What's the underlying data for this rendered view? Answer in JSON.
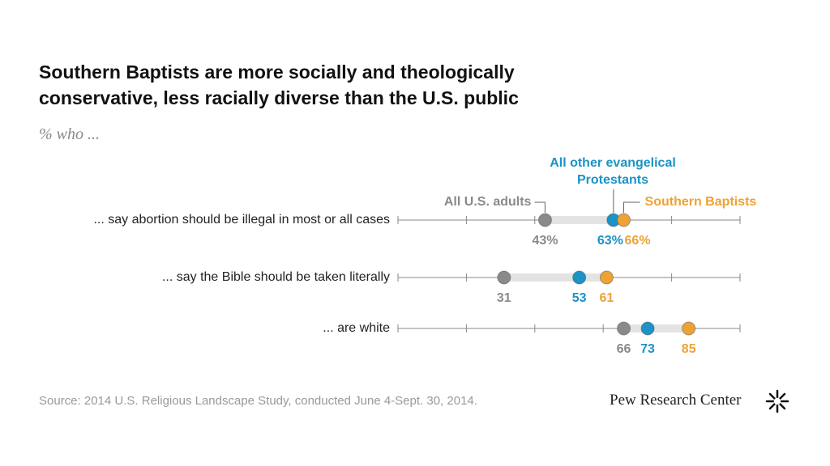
{
  "chart_data": {
    "type": "dot",
    "title": "Southern Baptists are more socially and theologically conservative, less racially diverse than the U.S. public",
    "subtitle": "% who ...",
    "categories": [
      "... say abortion should be illegal in most or all cases",
      "... say the Bible should be taken literally",
      "... are white"
    ],
    "series": [
      {
        "name": "All U.S. adults",
        "color": "#8a8a8a",
        "values": [
          43,
          31,
          66
        ],
        "value_labels": [
          "43%",
          "31",
          "66"
        ]
      },
      {
        "name": "All other evangelical Protestants",
        "color": "#1b93c6",
        "values": [
          63,
          53,
          73
        ],
        "value_labels": [
          "63%",
          "53",
          "73"
        ]
      },
      {
        "name": "Southern Baptists",
        "color": "#eea235",
        "values": [
          66,
          61,
          85
        ],
        "value_labels": [
          "66%",
          "61",
          "85"
        ]
      }
    ],
    "xlim": [
      0,
      100
    ],
    "xticks": [
      0,
      20,
      40,
      60,
      80,
      100
    ],
    "source": "Source: 2014 U.S. Religious Landscape Study, conducted June 4-Sept. 30, 2014.",
    "logo": "Pew Research Center"
  }
}
